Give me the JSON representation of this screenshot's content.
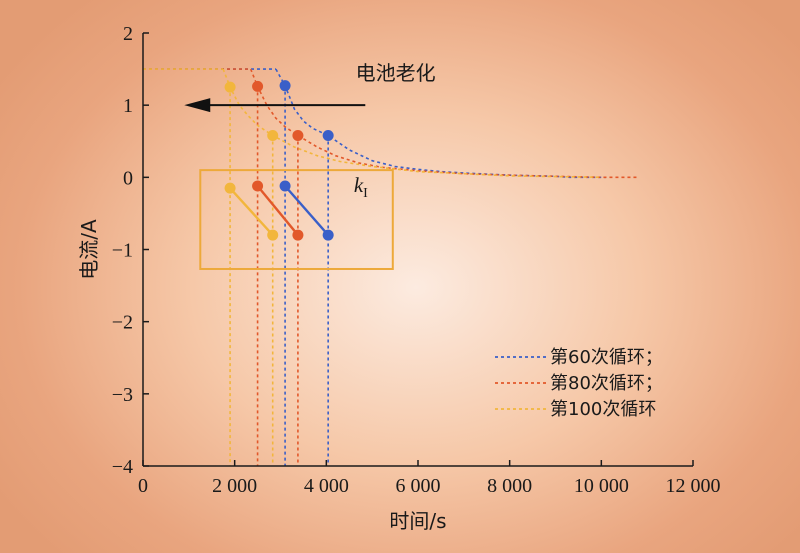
{
  "chart_data": {
    "type": "line",
    "xlabel": "时间/s",
    "ylabel": "电流/A",
    "xlim": [
      0,
      12000
    ],
    "ylim": [
      -4,
      2
    ],
    "x_ticks": [
      0,
      2000,
      4000,
      6000,
      8000,
      10000,
      12000
    ],
    "x_tick_labels": [
      "0",
      "2 000",
      "4 000",
      "6 000",
      "8 000",
      "10 000",
      "12 000"
    ],
    "y_ticks": [
      2,
      1,
      0,
      -1,
      -2,
      -3,
      -4
    ],
    "y_tick_labels": [
      "2",
      "1",
      "0",
      "−1",
      "−2",
      "−3",
      "−4"
    ],
    "grid": false,
    "legend_position": "bottom-right",
    "annotation": "电池老化",
    "box_label": "k",
    "box_label_subscript": "I",
    "series": [
      {
        "name": "第60次循环；",
        "color": "#3a5fc8",
        "cv_start": 3100,
        "cc_end": 4040,
        "current_cc": 1.5,
        "end_time": 10100,
        "cv_points": [
          [
            2900,
            1.5
          ],
          [
            3100,
            1.27
          ],
          [
            3300,
            0.95
          ],
          [
            3500,
            0.78
          ],
          [
            3700,
            0.68
          ],
          [
            4040,
            0.58
          ],
          [
            4500,
            0.38
          ],
          [
            5000,
            0.23
          ],
          [
            5500,
            0.15
          ],
          [
            6000,
            0.11
          ],
          [
            6500,
            0.08
          ],
          [
            7000,
            0.06
          ],
          [
            8000,
            0.03
          ],
          [
            9000,
            0.015
          ],
          [
            9300,
            0.0
          ],
          [
            9700,
            0.0
          ],
          [
            10100,
            0.0
          ]
        ],
        "marker_points": [
          [
            3100,
            1.27
          ],
          [
            4040,
            0.58
          ]
        ],
        "feature_points": [
          [
            3100,
            -0.12
          ],
          [
            4040,
            -0.8
          ]
        ]
      },
      {
        "name": "第80次循环；",
        "color": "#e2582a",
        "cv_start": 2500,
        "cc_end": 3380,
        "current_cc": 1.5,
        "end_time": 10800,
        "cv_points": [
          [
            2350,
            1.5
          ],
          [
            2500,
            1.26
          ],
          [
            2700,
            1.0
          ],
          [
            2900,
            0.82
          ],
          [
            3100,
            0.7
          ],
          [
            3380,
            0.58
          ],
          [
            3800,
            0.42
          ],
          [
            4200,
            0.3
          ],
          [
            4700,
            0.2
          ],
          [
            5200,
            0.14
          ],
          [
            6000,
            0.09
          ],
          [
            7000,
            0.05
          ],
          [
            8000,
            0.03
          ],
          [
            9000,
            0.015
          ],
          [
            10000,
            0.0
          ],
          [
            10800,
            0.0
          ]
        ],
        "marker_points": [
          [
            2500,
            1.26
          ],
          [
            3380,
            0.58
          ]
        ],
        "feature_points": [
          [
            2500,
            -0.12
          ],
          [
            3380,
            -0.8
          ]
        ]
      },
      {
        "name": "第100次循环",
        "color": "#f2b63c",
        "cv_start": 1900,
        "cc_end": 2830,
        "current_cc": 1.5,
        "end_time": 10000,
        "cv_points": [
          [
            1750,
            1.5
          ],
          [
            1900,
            1.25
          ],
          [
            2100,
            1.0
          ],
          [
            2300,
            0.85
          ],
          [
            2500,
            0.72
          ],
          [
            2830,
            0.58
          ],
          [
            3300,
            0.42
          ],
          [
            3800,
            0.3
          ],
          [
            4300,
            0.22
          ],
          [
            5000,
            0.15
          ],
          [
            6000,
            0.08
          ],
          [
            7000,
            0.05
          ],
          [
            8000,
            0.02
          ],
          [
            9000,
            0.01
          ],
          [
            10000,
            0.0
          ]
        ],
        "marker_points": [
          [
            1900,
            1.25
          ],
          [
            2830,
            0.58
          ]
        ],
        "feature_points": [
          [
            1900,
            -0.15
          ],
          [
            2830,
            -0.8
          ]
        ]
      }
    ]
  }
}
